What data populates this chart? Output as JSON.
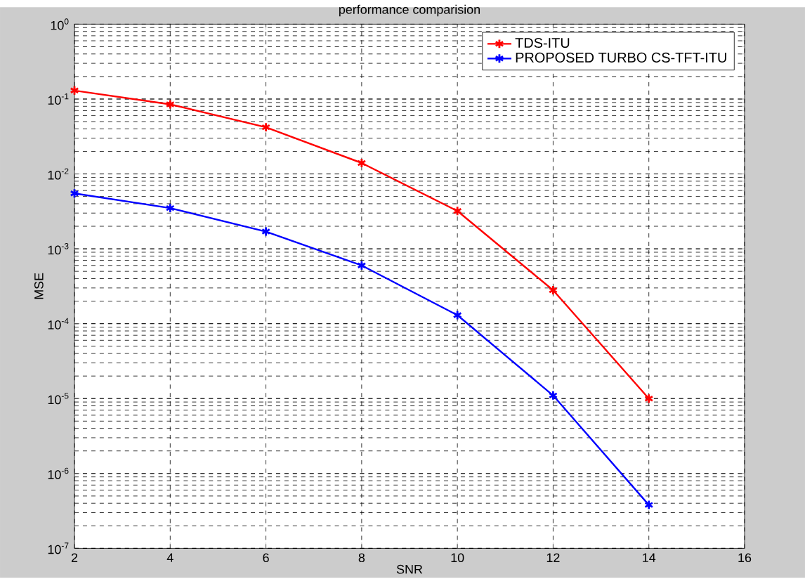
{
  "chart_data": {
    "type": "line",
    "title": "performance comparision",
    "xlabel": "SNR",
    "ylabel": "MSE",
    "x": [
      2,
      4,
      6,
      8,
      10,
      12,
      14
    ],
    "series": [
      {
        "name": "TDS-ITU",
        "color": "#ff0000",
        "values": [
          0.13,
          0.085,
          0.042,
          0.014,
          0.0032,
          0.00028,
          1e-05
        ]
      },
      {
        "name": "PROPOSED TURBO  CS-TFT-ITU",
        "color": "#0000ff",
        "values": [
          0.0055,
          0.0035,
          0.0017,
          0.0006,
          0.00013,
          1.1e-05,
          3.8e-07
        ]
      }
    ],
    "xlim": [
      2,
      16
    ],
    "xticks": [
      2,
      4,
      6,
      8,
      10,
      12,
      14,
      16
    ],
    "ylim": [
      1e-07,
      1
    ],
    "yticks": [
      {
        "value": 1e-07,
        "label": "10$^{-7}$"
      },
      {
        "value": 1e-06,
        "label": "10$^{-6}$"
      },
      {
        "value": 1e-05,
        "label": "10$^{-5}$"
      },
      {
        "value": 0.0001,
        "label": "10$^{-4}$"
      },
      {
        "value": 0.001,
        "label": "10$^{-3}$"
      },
      {
        "value": 0.01,
        "label": "10$^{-2}$"
      },
      {
        "value": 0.1,
        "label": "10$^{-1}$"
      },
      {
        "value": 1,
        "label": "10$^{0}$"
      }
    ],
    "log": "y",
    "grid": true,
    "legend": "top right",
    "marker": "cross",
    "line_style": "solid"
  }
}
